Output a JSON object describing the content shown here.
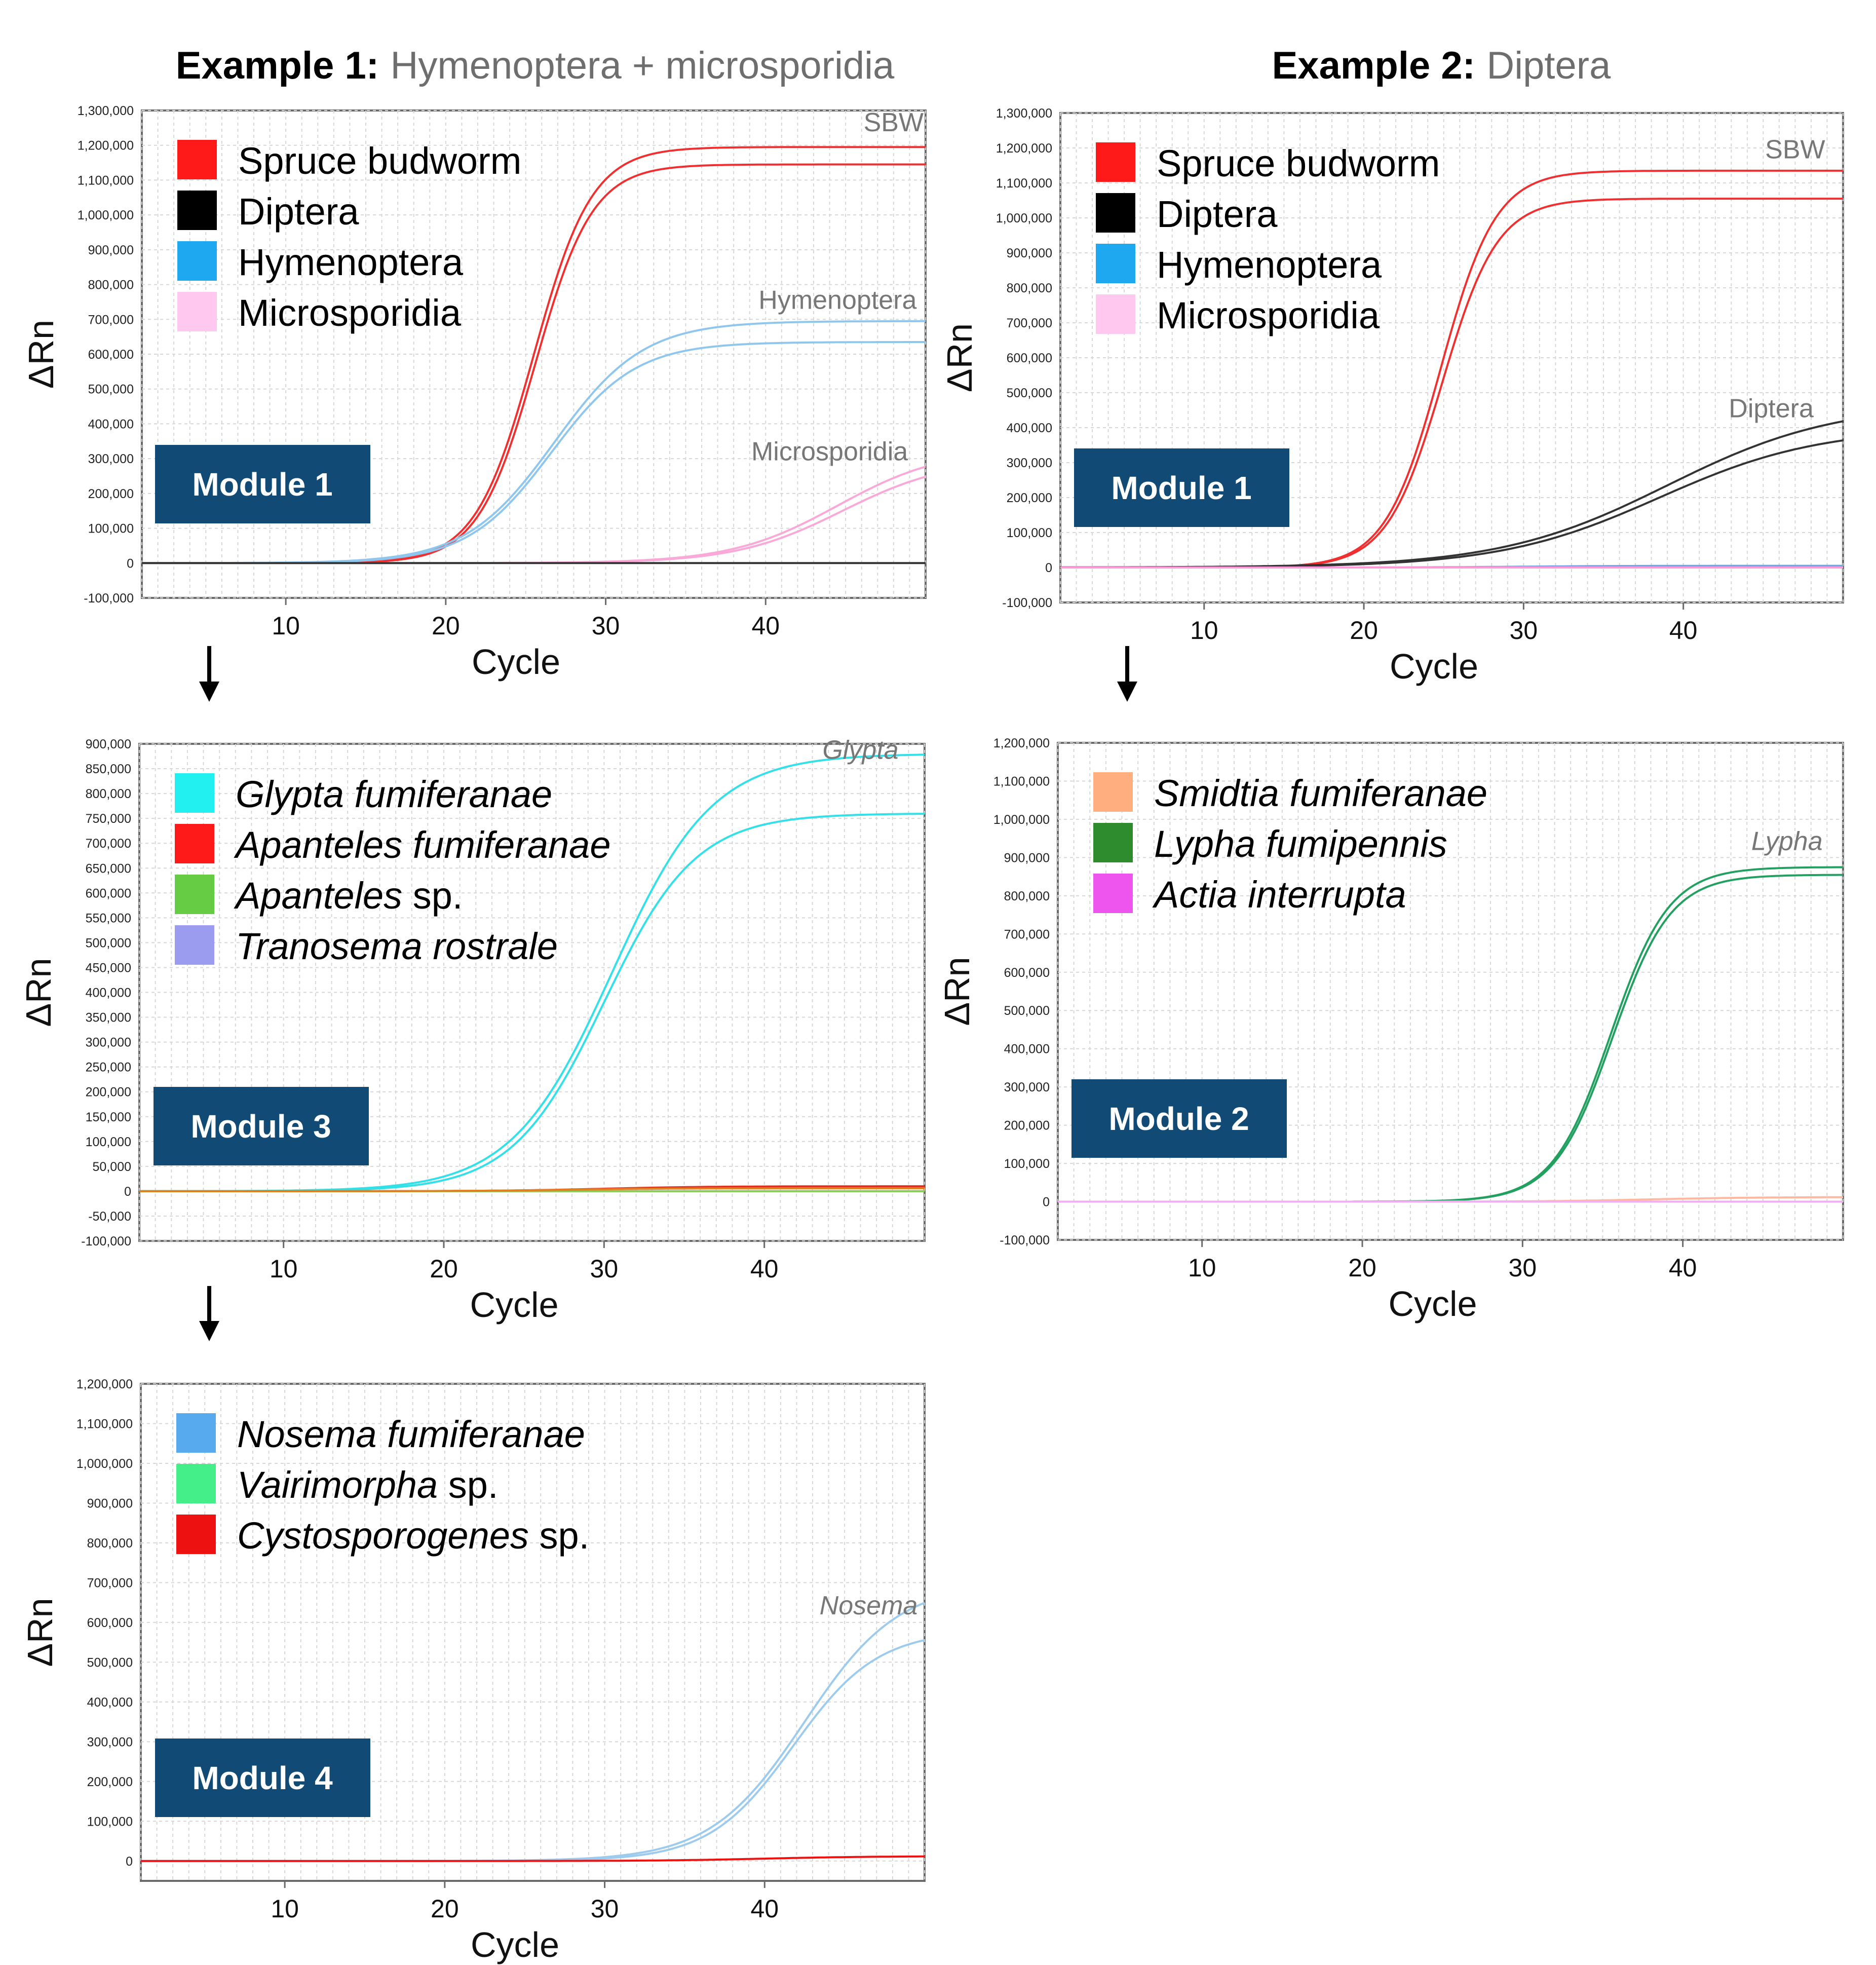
{
  "figure": {
    "example1": {
      "label": "Example 1:",
      "text": "Hymenoptera + microsporidia"
    },
    "example2": {
      "label": "Example 2:",
      "text": "Diptera"
    }
  },
  "chart_data": [
    {
      "id": "ex1-module1",
      "type": "line",
      "module": "Module 1",
      "xlabel": "Cycle",
      "ylabel": "ΔRn",
      "xlim": [
        1,
        50
      ],
      "ylim": [
        -100000,
        1300000
      ],
      "xticks": [
        10,
        20,
        30,
        40
      ],
      "yticks": [
        -100000,
        0,
        100000,
        200000,
        300000,
        400000,
        500000,
        600000,
        700000,
        800000,
        900000,
        1000000,
        1100000,
        1200000,
        1300000
      ],
      "legend": [
        {
          "label": "Spruce budworm",
          "color": "#ff1a1a"
        },
        {
          "label": "Diptera",
          "color": "#000000"
        },
        {
          "label": "Hymenoptera",
          "color": "#1ea8f0"
        },
        {
          "label": "Microsporidia",
          "color": "#ffc8ee"
        }
      ],
      "annotations": [
        {
          "text": "SBW",
          "x": 48,
          "y": 1240000,
          "italic": false
        },
        {
          "text": "Hymenoptera",
          "x": 44.5,
          "y": 730000,
          "italic": false
        },
        {
          "text": "Microsporidia",
          "x": 44,
          "y": 295000,
          "italic": false
        }
      ],
      "series": [
        {
          "name": "Spruce budworm 1",
          "color": "#f03030",
          "plateau": 1195000,
          "mid": 25.5,
          "k": 0.55,
          "start": 0
        },
        {
          "name": "Spruce budworm 2",
          "color": "#f03030",
          "plateau": 1145000,
          "mid": 25.6,
          "k": 0.56,
          "start": 0
        },
        {
          "name": "Hymenoptera 1",
          "color": "#8fc6ee",
          "plateau": 695000,
          "mid": 26.8,
          "k": 0.36,
          "start": 0
        },
        {
          "name": "Hymenoptera 2",
          "color": "#8fc6ee",
          "plateau": 635000,
          "mid": 26.6,
          "k": 0.38,
          "start": 0
        },
        {
          "name": "Microsporidia 1",
          "color": "#f9a8d8",
          "plateau": 330000,
          "mid": 44.5,
          "k": 0.3,
          "start": 0
        },
        {
          "name": "Microsporidia 2",
          "color": "#f9a8d8",
          "plateau": 300000,
          "mid": 44.8,
          "k": 0.3,
          "start": 0
        },
        {
          "name": "Diptera",
          "color": "#333333",
          "plateau": 0,
          "mid": 30,
          "k": 0.5,
          "start": 0
        }
      ]
    },
    {
      "id": "ex1-module3",
      "type": "line",
      "module": "Module 3",
      "xlabel": "Cycle",
      "ylabel": "ΔRn",
      "xlim": [
        1,
        50
      ],
      "ylim": [
        -100000,
        900000
      ],
      "xticks": [
        10,
        20,
        30,
        40
      ],
      "yticks": [
        -100000,
        -50000,
        0,
        50000,
        100000,
        150000,
        200000,
        250000,
        300000,
        350000,
        400000,
        450000,
        500000,
        550000,
        600000,
        650000,
        700000,
        750000,
        800000,
        850000,
        900000
      ],
      "legend": [
        {
          "label": "Glypta fumiferanae",
          "color": "#22f0f0",
          "italic": "Glypta fumiferanae",
          "plain": ""
        },
        {
          "label": "Apanteles fumiferanae",
          "color": "#ff1a1a",
          "italic": "Apanteles fumiferanae",
          "plain": ""
        },
        {
          "label": "Apanteles sp.",
          "color": "#66cc44",
          "italic": "Apanteles",
          "plain": " sp."
        },
        {
          "label": "Tranosema rostrale",
          "color": "#9b9bf0",
          "italic": "Tranosema rostrale",
          "plain": ""
        }
      ],
      "annotations": [
        {
          "text": "Glypta",
          "x": 46,
          "y": 870000,
          "italic": true
        }
      ],
      "series": [
        {
          "name": "Glypta fumiferanae 1",
          "color": "#33e0e8",
          "plateau": 880000,
          "mid": 30.5,
          "k": 0.32,
          "start": 0
        },
        {
          "name": "Glypta fumiferanae 2",
          "color": "#33e0e8",
          "plateau": 760000,
          "mid": 30.0,
          "k": 0.35,
          "start": 0
        },
        {
          "name": "Apanteles fumiferanae",
          "color": "#e03020",
          "plateau": 10000,
          "mid": 30,
          "k": 0.3,
          "start": 0
        },
        {
          "name": "Apanteles sp.",
          "color": "#88cc55",
          "plateau": 0,
          "mid": 30,
          "k": 0.3,
          "start": 0
        },
        {
          "name": "Tranosema rostrale",
          "color": "#e08020",
          "plateau": 6000,
          "mid": 28,
          "k": 0.3,
          "start": 0
        }
      ]
    },
    {
      "id": "ex1-module4",
      "type": "line",
      "module": "Module 4",
      "xlabel": "Cycle",
      "ylabel": "ΔRn",
      "xlim": [
        1,
        50
      ],
      "ylim": [
        -50000,
        1200000
      ],
      "xticks": [
        10,
        20,
        30,
        40
      ],
      "yticks": [
        0,
        100000,
        200000,
        300000,
        400000,
        500000,
        600000,
        700000,
        800000,
        900000,
        1000000,
        1100000,
        1200000
      ],
      "legend": [
        {
          "label": "Nosema fumiferanae",
          "color": "#58aaee",
          "italic": "Nosema fumiferanae",
          "plain": ""
        },
        {
          "label": "Vairimorpha sp.",
          "color": "#44ee88",
          "italic": "Vairimorpha",
          "plain": " sp."
        },
        {
          "label": "Cystosporogenes sp.",
          "color": "#ee1111",
          "italic": "Cystosporogenes",
          "plain": " sp."
        }
      ],
      "annotations": [
        {
          "text": "Nosema",
          "x": 46.5,
          "y": 620000,
          "italic": true
        }
      ],
      "series": [
        {
          "name": "Nosema fumiferanae 1",
          "color": "#9ccbee",
          "plateau": 700000,
          "mid": 42.5,
          "k": 0.34,
          "start": 0
        },
        {
          "name": "Nosema fumiferanae 2",
          "color": "#9ccbee",
          "plateau": 580000,
          "mid": 41.8,
          "k": 0.38,
          "start": 0
        },
        {
          "name": "Cystosporogenes sp.",
          "color": "#ee1111",
          "plateau": 12000,
          "mid": 40,
          "k": 0.3,
          "start": 0
        }
      ]
    },
    {
      "id": "ex2-module1",
      "type": "line",
      "module": "Module 1",
      "xlabel": "Cycle",
      "ylabel": "ΔRn",
      "xlim": [
        1,
        50
      ],
      "ylim": [
        -100000,
        1300000
      ],
      "xticks": [
        10,
        20,
        30,
        40
      ],
      "yticks": [
        -100000,
        0,
        100000,
        200000,
        300000,
        400000,
        500000,
        600000,
        700000,
        800000,
        900000,
        1000000,
        1100000,
        1200000,
        1300000
      ],
      "legend": [
        {
          "label": "Spruce budworm",
          "color": "#ff1a1a"
        },
        {
          "label": "Diptera",
          "color": "#000000"
        },
        {
          "label": "Hymenoptera",
          "color": "#1ea8f0"
        },
        {
          "label": "Microsporidia",
          "color": "#ffc8ee"
        }
      ],
      "annotations": [
        {
          "text": "SBW",
          "x": 47,
          "y": 1170000,
          "italic": false
        },
        {
          "text": "Diptera",
          "x": 45.5,
          "y": 430000,
          "italic": false
        }
      ],
      "series": [
        {
          "name": "Spruce budworm 1",
          "color": "#f03030",
          "plateau": 1135000,
          "mid": 24.8,
          "k": 0.58,
          "start": 0
        },
        {
          "name": "Spruce budworm 2",
          "color": "#f03030",
          "plateau": 1055000,
          "mid": 24.9,
          "k": 0.58,
          "start": 0
        },
        {
          "name": "Diptera 1",
          "color": "#333333",
          "plateau": 470000,
          "mid": 39,
          "k": 0.19,
          "start": 0
        },
        {
          "name": "Diptera 2",
          "color": "#333333",
          "plateau": 400000,
          "mid": 38.5,
          "k": 0.2,
          "start": 0
        },
        {
          "name": "Hymenoptera",
          "color": "#66aaee",
          "plateau": 5000,
          "mid": 30,
          "k": 0.3,
          "start": 0
        },
        {
          "name": "Microsporidia",
          "color": "#ff99dd",
          "plateau": 0,
          "mid": 30,
          "k": 0.3,
          "start": 0
        }
      ]
    },
    {
      "id": "ex2-module2",
      "type": "line",
      "module": "Module 2",
      "xlabel": "Cycle",
      "ylabel": "ΔRn",
      "xlim": [
        1,
        50
      ],
      "ylim": [
        -100000,
        1200000
      ],
      "xticks": [
        10,
        20,
        30,
        40
      ],
      "yticks": [
        -100000,
        0,
        100000,
        200000,
        300000,
        400000,
        500000,
        600000,
        700000,
        800000,
        900000,
        1000000,
        1100000,
        1200000
      ],
      "legend": [
        {
          "label": "Smidtia fumiferanae",
          "color": "#ffae80",
          "italic": "Smidtia fumiferanae",
          "plain": ""
        },
        {
          "label": "Lypha fumipennis",
          "color": "#2e8b2e",
          "italic": "Lypha fumipennis",
          "plain": ""
        },
        {
          "label": "Actia interrupta",
          "color": "#ee55ee",
          "italic": "Actia interrupta",
          "plain": ""
        }
      ],
      "annotations": [
        {
          "text": "Lypha",
          "x": 46.5,
          "y": 920000,
          "italic": true
        }
      ],
      "series": [
        {
          "name": "Lypha fumipennis 1",
          "color": "#22a060",
          "plateau": 875000,
          "mid": 35.5,
          "k": 0.55,
          "start": 0
        },
        {
          "name": "Lypha fumipennis 2",
          "color": "#22a060",
          "plateau": 855000,
          "mid": 35.6,
          "k": 0.55,
          "start": 0
        },
        {
          "name": "Smidtia fumiferanae",
          "color": "#ffb8a0",
          "plateau": 12000,
          "mid": 38,
          "k": 0.3,
          "start": 0
        },
        {
          "name": "Actia interrupta",
          "color": "#f0b0f0",
          "plateau": 0,
          "mid": 30,
          "k": 0.3,
          "start": 0
        }
      ]
    }
  ]
}
